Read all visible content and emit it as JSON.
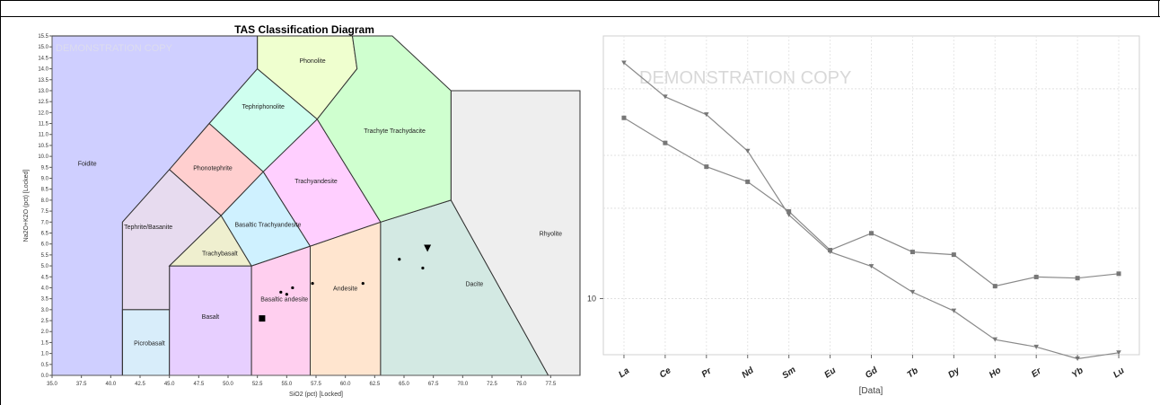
{
  "chart_data": [
    {
      "type": "scatter",
      "title": "TAS Classification Diagram",
      "xlabel": "SiO2 (pct) [Locked]",
      "ylabel": "Na2O+K2O (pct) [Locked]",
      "xlim": [
        35.0,
        80.0
      ],
      "ylim": [
        0.0,
        15.5
      ],
      "xticks": [
        "35.0",
        "37.5",
        "40.0",
        "42.5",
        "45.0",
        "47.5",
        "50.0",
        "52.5",
        "55.0",
        "57.5",
        "60.0",
        "62.5",
        "65.0",
        "67.5",
        "70.0",
        "72.5",
        "75.0",
        "77.5"
      ],
      "yticks": [
        "0.0",
        "0.5",
        "1.0",
        "1.5",
        "2.0",
        "2.5",
        "3.0",
        "3.5",
        "4.0",
        "4.5",
        "5.0",
        "5.5",
        "6.0",
        "6.5",
        "7.0",
        "7.5",
        "8.0",
        "8.5",
        "9.0",
        "9.5",
        "10.0",
        "10.5",
        "11.0",
        "11.5",
        "12.0",
        "12.5",
        "13.0",
        "13.5",
        "14.0",
        "14.5",
        "15.0",
        "15.5"
      ],
      "watermark": "DEMONSTRATION COPY",
      "fields": [
        {
          "name": "Foidite",
          "color": "#ccccff",
          "label_at": [
            38.0,
            9.7
          ],
          "polygon": [
            [
              35,
              0
            ],
            [
              35,
              15.5
            ],
            [
              52.5,
              15.5
            ],
            [
              52.5,
              14
            ],
            [
              48.4,
              11.5
            ],
            [
              45,
              9.4
            ],
            [
              41,
              7
            ],
            [
              41,
              0
            ]
          ]
        },
        {
          "name": "Picrobasalt",
          "color": "#d6ecfa",
          "label_at": [
            43.3,
            1.5
          ],
          "polygon": [
            [
              41,
              0
            ],
            [
              41,
              3
            ],
            [
              45,
              3
            ],
            [
              45,
              0
            ]
          ]
        },
        {
          "name": "Basalt",
          "color": "#e6ccff",
          "label_at": [
            48.5,
            2.7
          ],
          "polygon": [
            [
              45,
              0
            ],
            [
              45,
              5
            ],
            [
              52,
              5
            ],
            [
              52,
              0
            ]
          ]
        },
        {
          "name": "Basaltic andesite",
          "color": "#ffccee",
          "label_at": [
            54.8,
            3.5
          ],
          "polygon": [
            [
              52,
              0
            ],
            [
              52,
              5
            ],
            [
              57,
              5.9
            ],
            [
              57,
              0
            ]
          ]
        },
        {
          "name": "Andesite",
          "color": "#ffe4cc",
          "label_at": [
            60.0,
            4.0
          ],
          "polygon": [
            [
              57,
              0
            ],
            [
              57,
              5.9
            ],
            [
              63,
              7
            ],
            [
              63,
              0
            ]
          ]
        },
        {
          "name": "Dacite",
          "color": "#d1e8e2",
          "label_at": [
            71.0,
            4.2
          ],
          "polygon": [
            [
              63,
              0
            ],
            [
              63,
              7
            ],
            [
              69,
              8
            ],
            [
              77.3,
              0
            ]
          ]
        },
        {
          "name": "Rhyolite",
          "color": "#ededed",
          "label_at": [
            77.5,
            6.5
          ],
          "polygon": [
            [
              77.3,
              0
            ],
            [
              69,
              8
            ],
            [
              69,
              13
            ],
            [
              80,
              13
            ],
            [
              80,
              0
            ]
          ]
        },
        {
          "name": "Tephrite/Basanite",
          "color": "#e6d9ee",
          "label_at": [
            43.2,
            6.8
          ],
          "polygon": [
            [
              41,
              0
            ],
            [
              41,
              7
            ],
            [
              45,
              9.4
            ],
            [
              49.4,
              7.3
            ],
            [
              45,
              5
            ],
            [
              45,
              3
            ],
            [
              41,
              3
            ]
          ]
        },
        {
          "name": "Trachybasalt",
          "color": "#eeeecc",
          "label_at": [
            49.3,
            5.6
          ],
          "polygon": [
            [
              45,
              5
            ],
            [
              49.4,
              7.3
            ],
            [
              52,
              5
            ]
          ]
        },
        {
          "name": "Basaltic Trachyandesite",
          "color": "#ccf0ff",
          "label_at": [
            53.4,
            6.9
          ],
          "polygon": [
            [
              49.4,
              7.3
            ],
            [
              52,
              5
            ],
            [
              57,
              5.9
            ],
            [
              53,
              9.3
            ]
          ]
        },
        {
          "name": "Trachyandesite",
          "color": "#ffccff",
          "label_at": [
            57.5,
            8.9
          ],
          "polygon": [
            [
              53,
              9.3
            ],
            [
              57,
              5.9
            ],
            [
              63,
              7
            ],
            [
              57.6,
              11.7
            ]
          ]
        },
        {
          "name": "Phonotephrite",
          "color": "#ffcccc",
          "label_at": [
            48.7,
            9.5
          ],
          "polygon": [
            [
              45,
              9.4
            ],
            [
              48.4,
              11.5
            ],
            [
              53,
              9.3
            ],
            [
              49.4,
              7.3
            ]
          ]
        },
        {
          "name": "Tephriphonolite",
          "color": "#ccffee",
          "label_at": [
            53.0,
            12.3
          ],
          "polygon": [
            [
              48.4,
              11.5
            ],
            [
              52.5,
              14
            ],
            [
              57.6,
              11.7
            ],
            [
              53,
              9.3
            ]
          ]
        },
        {
          "name": "Phonolite",
          "color": "#eeffcc",
          "label_at": [
            57.2,
            14.4
          ],
          "polygon": [
            [
              52.5,
              14
            ],
            [
              52.5,
              15.5
            ],
            [
              60.6,
              15.5
            ],
            [
              61,
              14
            ],
            [
              57.6,
              11.7
            ]
          ]
        },
        {
          "name": "Trachyte Trachydacite",
          "color": "#ccffcc",
          "label_at": [
            64.2,
            11.2
          ],
          "polygon": [
            [
              57.6,
              11.7
            ],
            [
              63,
              7
            ],
            [
              69,
              8
            ],
            [
              69,
              13
            ],
            [
              64,
              15.5
            ],
            [
              60.6,
              15.5
            ],
            [
              61,
              14
            ]
          ]
        }
      ],
      "points": [
        {
          "x": 52.9,
          "y": 2.6,
          "marker": "square"
        },
        {
          "x": 67.0,
          "y": 5.8,
          "marker": "triangle-down"
        },
        {
          "x": 54.5,
          "y": 3.8,
          "marker": "dot"
        },
        {
          "x": 55.0,
          "y": 3.7,
          "marker": "dot"
        },
        {
          "x": 55.5,
          "y": 4.0,
          "marker": "dot"
        },
        {
          "x": 57.2,
          "y": 4.2,
          "marker": "dot"
        },
        {
          "x": 61.5,
          "y": 4.2,
          "marker": "dot"
        },
        {
          "x": 64.6,
          "y": 5.3,
          "marker": "dot"
        },
        {
          "x": 66.6,
          "y": 4.9,
          "marker": "dot"
        }
      ]
    },
    {
      "type": "line",
      "xlabel": "[Data]",
      "ylabel": "",
      "yscale": "log",
      "ylim": [
        6.5,
        75
      ],
      "ytick_labels": [
        "10"
      ],
      "categories": [
        "La",
        "Ce",
        "Pr",
        "Nd",
        "Sm",
        "Eu",
        "Gd",
        "Tb",
        "Dy",
        "Ho",
        "Er",
        "Yb",
        "Lu"
      ],
      "watermark": "DEMONSTRATION COPY",
      "series": [
        {
          "marker": "square",
          "values": [
            40,
            33,
            27.5,
            24.5,
            19.5,
            14.5,
            16.5,
            14.3,
            14.0,
            11.0,
            11.8,
            11.7,
            12.1
          ]
        },
        {
          "marker": "triangle-down",
          "values": [
            61,
            47,
            41,
            31,
            19,
            14.3,
            12.8,
            10.5,
            9.1,
            7.3,
            6.9,
            6.3,
            6.6
          ]
        }
      ]
    }
  ]
}
